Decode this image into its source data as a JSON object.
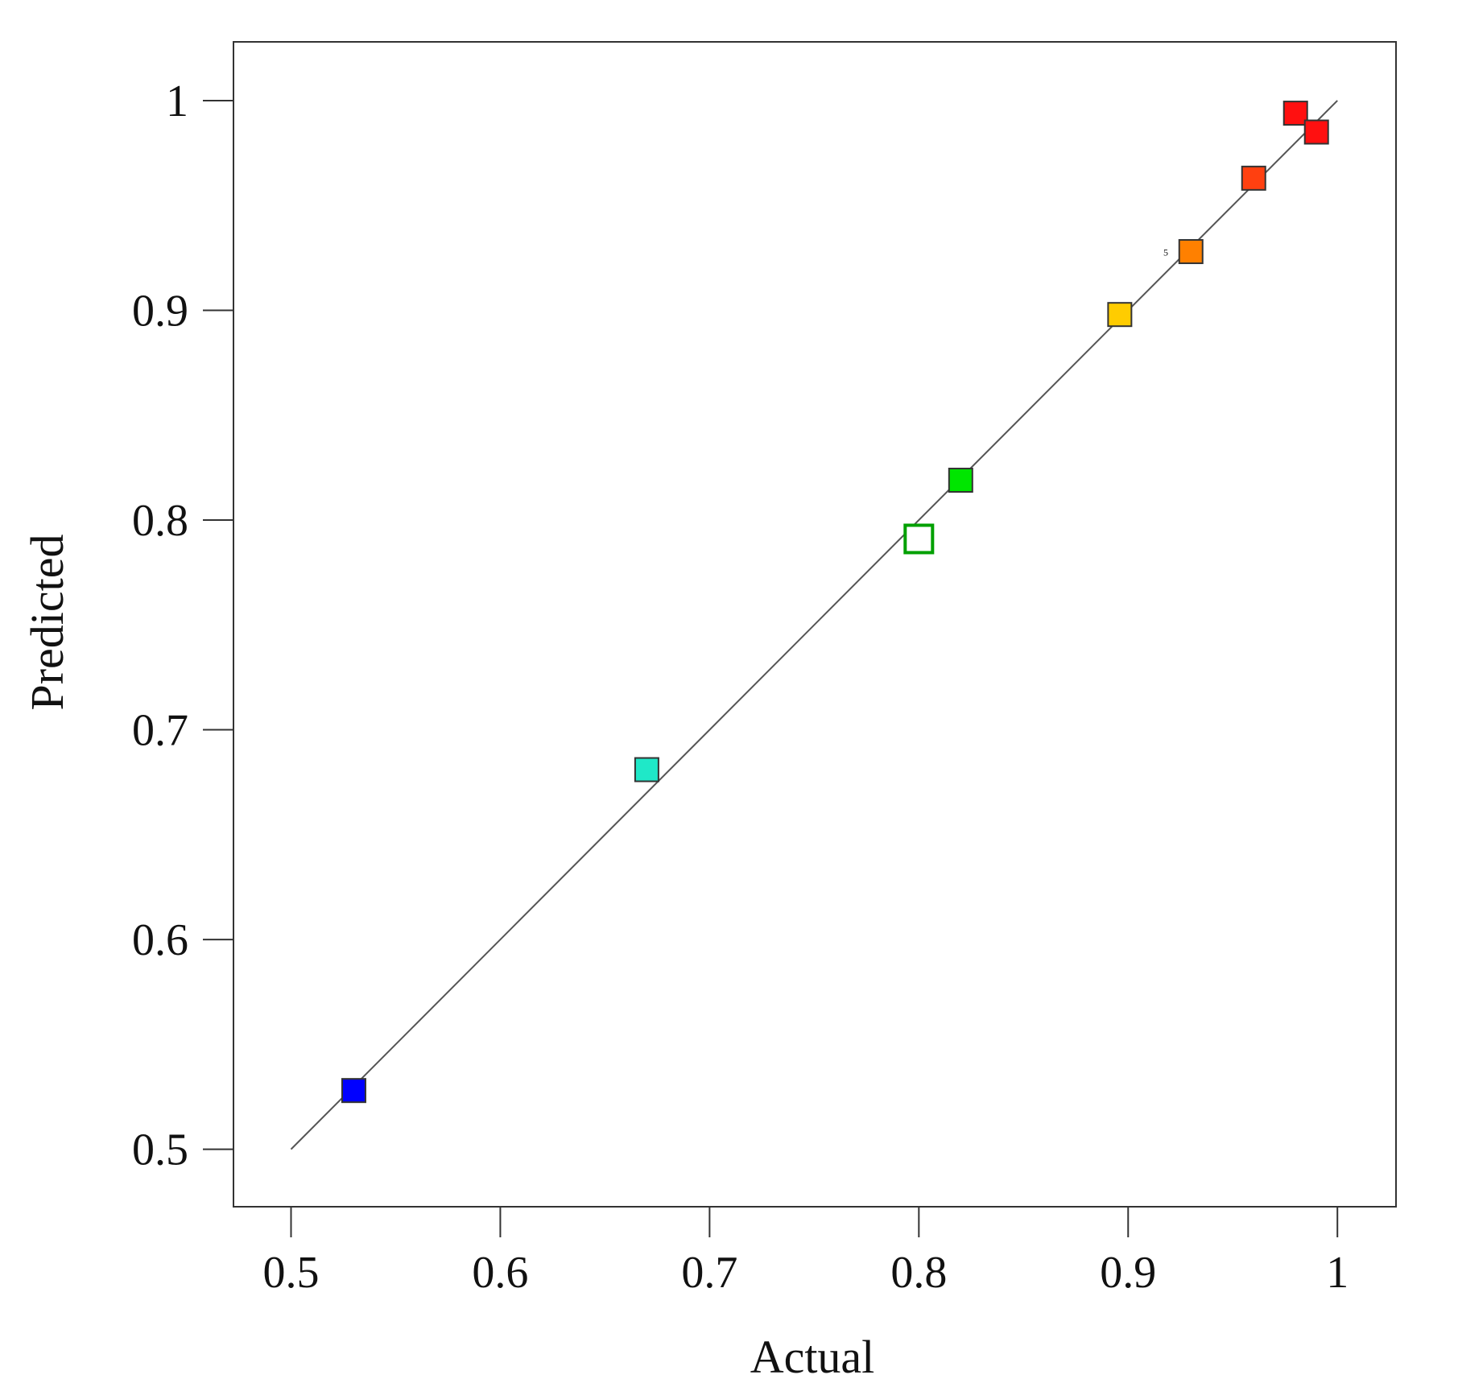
{
  "chart_data": {
    "type": "scatter",
    "x_label": "Actual",
    "y_label": "Predicted",
    "xlim": [
      0.4725,
      1.028
    ],
    "ylim": [
      0.4726,
      1.028
    ],
    "xticks": [
      0.5,
      0.6,
      0.7,
      0.8,
      0.9,
      1
    ],
    "yticks": [
      0.5,
      0.6,
      0.7,
      0.8,
      0.9,
      1
    ],
    "grid": false,
    "series": [
      {
        "x": [
          0.53,
          0.67,
          0.8,
          0.82,
          0.896,
          0.93,
          0.96,
          0.98,
          0.99
        ],
        "values": [
          0.528,
          0.681,
          0.791,
          0.819,
          0.898,
          0.928,
          0.963,
          0.994,
          0.985
        ],
        "colors": [
          "#0000ff",
          "#1fe8c8",
          "#ffffff",
          "#00e600",
          "#ffcc00",
          "#ff8000",
          "#ff4010",
          "#ff1010",
          "#ff1010"
        ],
        "edge_colors": [
          "#333333",
          "#333333",
          "#00a000",
          "#333333",
          "#333333",
          "#333333",
          "#333333",
          "#333333",
          "#333333"
        ]
      }
    ],
    "reference_line": {
      "x": [
        0.5,
        1
      ],
      "y": [
        0.5,
        1
      ],
      "color": "#555555"
    },
    "annotations": [
      {
        "text": "5",
        "x": 0.918,
        "y": 0.928
      }
    ]
  }
}
